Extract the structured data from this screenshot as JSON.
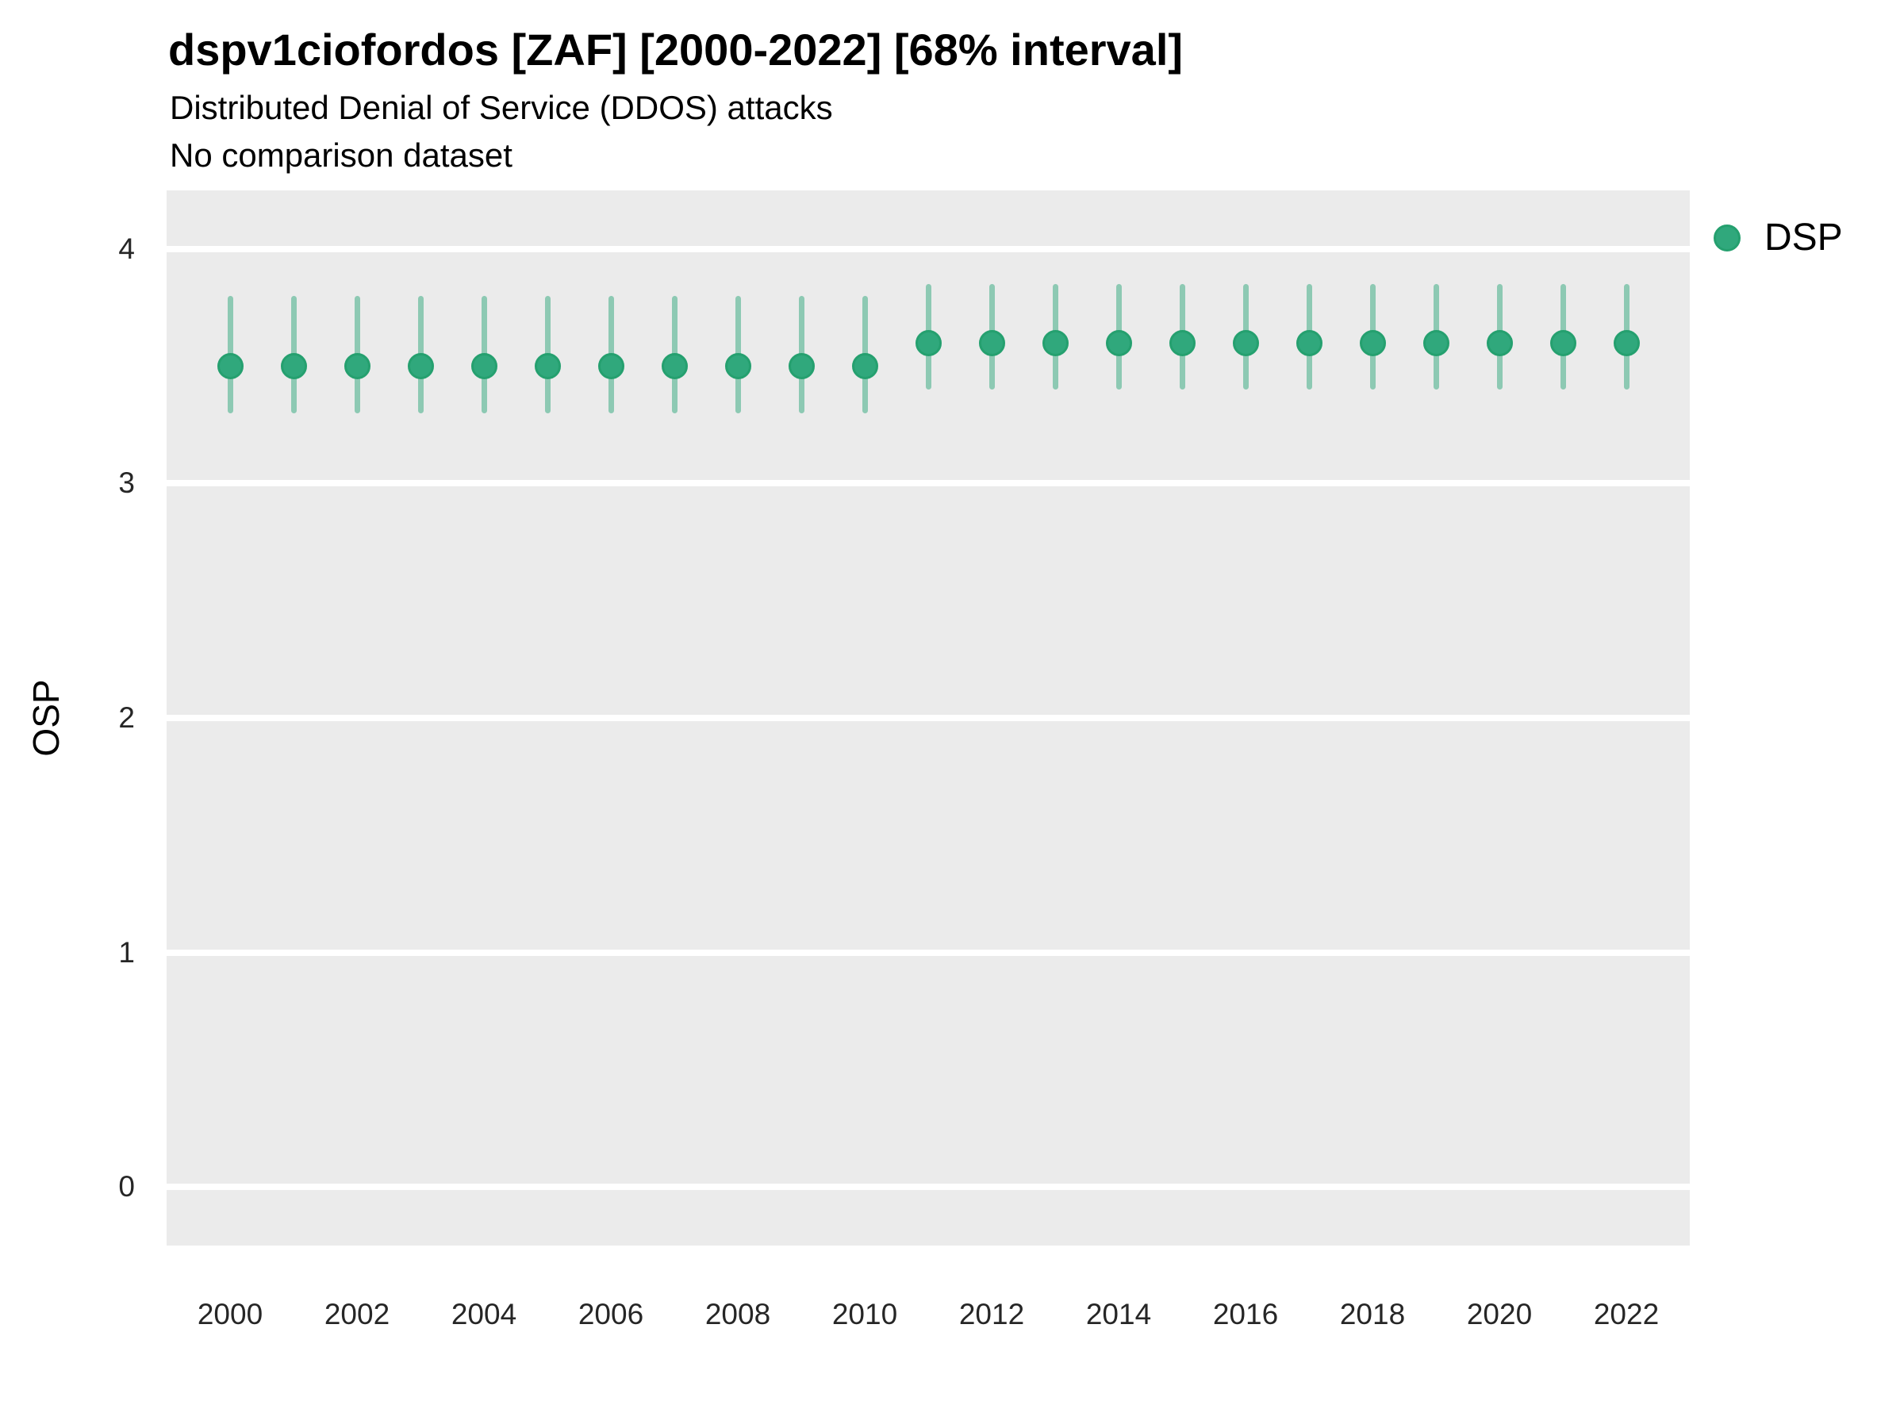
{
  "header": {
    "title": "dspv1ciofordos [ZAF] [2000-2022] [68% interval]",
    "subtitle": "Distributed Denial of Service (DDOS) attacks",
    "comparison_note": "No comparison dataset"
  },
  "legend": {
    "position": "right",
    "items": [
      {
        "label": "DSP",
        "marker": "circle-icon",
        "color": "#30a87c"
      }
    ]
  },
  "chart_data": {
    "type": "scatter",
    "title": "dspv1ciofordos [ZAF] [2000-2022] [68% interval]",
    "subtitle": "Distributed Denial of Service (DDOS) attacks",
    "note": "No comparison dataset",
    "interval": "68%",
    "xlabel": "",
    "ylabel": "OSP",
    "xlim": [
      1999,
      2023
    ],
    "ylim": [
      -0.25,
      4.25
    ],
    "yticks": [
      0,
      1,
      2,
      3,
      4
    ],
    "xticks": [
      2000,
      2002,
      2004,
      2006,
      2008,
      2010,
      2012,
      2014,
      2016,
      2018,
      2020,
      2022
    ],
    "grid": "major-horizontal only, white on gray panel",
    "legend_position": "right",
    "series": [
      {
        "name": "DSP",
        "x": [
          2000,
          2001,
          2002,
          2003,
          2004,
          2005,
          2006,
          2007,
          2008,
          2009,
          2010,
          2011,
          2012,
          2013,
          2014,
          2015,
          2016,
          2017,
          2018,
          2019,
          2020,
          2021,
          2022
        ],
        "y": [
          3.5,
          3.5,
          3.5,
          3.5,
          3.5,
          3.5,
          3.5,
          3.5,
          3.5,
          3.5,
          3.5,
          3.6,
          3.6,
          3.6,
          3.6,
          3.6,
          3.6,
          3.6,
          3.6,
          3.6,
          3.6,
          3.6,
          3.6
        ],
        "lo": [
          3.3,
          3.3,
          3.3,
          3.3,
          3.3,
          3.3,
          3.3,
          3.3,
          3.3,
          3.3,
          3.3,
          3.4,
          3.4,
          3.4,
          3.4,
          3.4,
          3.4,
          3.4,
          3.4,
          3.4,
          3.4,
          3.4,
          3.4
        ],
        "hi": [
          3.8,
          3.8,
          3.8,
          3.8,
          3.8,
          3.8,
          3.8,
          3.8,
          3.8,
          3.8,
          3.8,
          3.85,
          3.85,
          3.85,
          3.85,
          3.85,
          3.85,
          3.85,
          3.85,
          3.85,
          3.85,
          3.85,
          3.85
        ]
      }
    ],
    "colors": {
      "point": "#30a87c",
      "point_border": "#25a06f",
      "interval": "#30a87c",
      "panel": "#ebebeb",
      "gridline": "#ffffff",
      "title_text": "#000000",
      "tick_text": "#262626"
    }
  }
}
